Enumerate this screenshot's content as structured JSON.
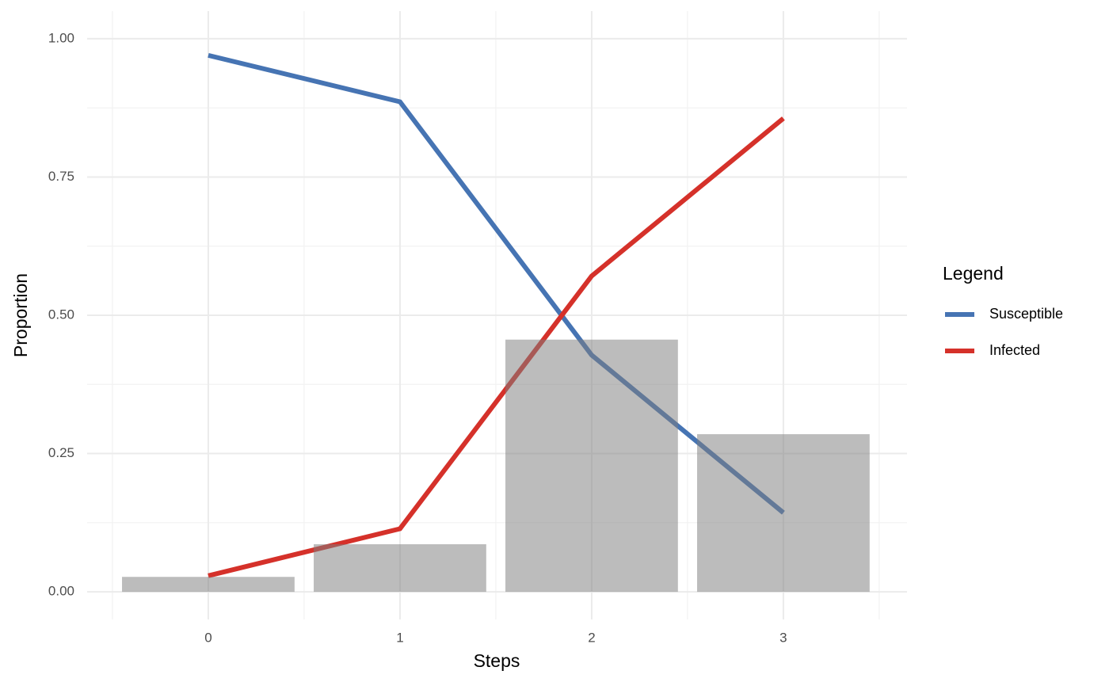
{
  "chart_data": {
    "type": "line",
    "x_label": "Steps",
    "y_label": "Proportion",
    "x": [
      0,
      1,
      2,
      3
    ],
    "series": [
      {
        "name": "Susceptible",
        "color": "#4674b3",
        "values": [
          0.97,
          0.886,
          0.428,
          0.143
        ]
      },
      {
        "name": "Infected",
        "color": "#d5312a",
        "values": [
          0.029,
          0.114,
          0.571,
          0.856
        ]
      }
    ],
    "bars": {
      "color": "#7f7f7f",
      "opacity": 0.52,
      "width": 0.9,
      "values": [
        0.027,
        0.086,
        0.456,
        0.285
      ]
    },
    "xlim": [
      -0.632,
      3.645
    ],
    "xticks": [
      0,
      1,
      2,
      3
    ],
    "ylim": [
      -0.05,
      1.05
    ],
    "yticks": [
      {
        "value": 0,
        "label": "0.00"
      },
      {
        "value": 0.25,
        "label": "0.25"
      },
      {
        "value": 0.5,
        "label": "0.50"
      },
      {
        "value": 0.75,
        "label": "0.75"
      },
      {
        "value": 1,
        "label": "1.00"
      }
    ],
    "grid": true,
    "legend_title": "Legend",
    "legend_position": "right"
  }
}
